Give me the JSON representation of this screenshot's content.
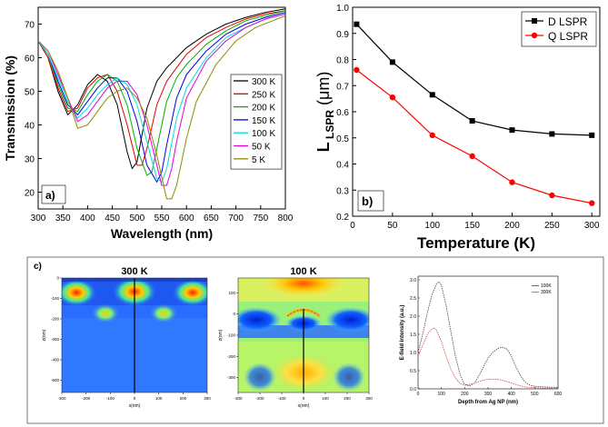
{
  "chart_data": [
    {
      "type": "line",
      "panel_label": "a)",
      "xlabel": "Wavelength (nm)",
      "ylabel": "Transmission (%)",
      "xlim": [
        300,
        800
      ],
      "ylim": [
        15,
        75
      ],
      "xticks": [
        300,
        350,
        400,
        450,
        500,
        550,
        600,
        650,
        700,
        750,
        800
      ],
      "yticks": [
        20,
        30,
        40,
        50,
        60,
        70
      ],
      "legend_position": "right",
      "series": [
        {
          "name": "300 K",
          "color": "#000000",
          "x": [
            300,
            320,
            340,
            360,
            380,
            400,
            420,
            440,
            460,
            480,
            490,
            500,
            510,
            520,
            540,
            560,
            580,
            600,
            640,
            680,
            720,
            760,
            800
          ],
          "y": [
            65,
            60,
            50,
            43,
            46,
            52,
            55,
            53,
            46,
            32,
            27,
            29,
            37,
            45,
            53,
            57,
            60,
            63,
            67,
            70,
            72,
            73.5,
            74.5
          ]
        },
        {
          "name": "250 K",
          "color": "#e00000",
          "x": [
            300,
            320,
            340,
            360,
            380,
            400,
            420,
            440,
            460,
            480,
            500,
            510,
            520,
            540,
            560,
            580,
            600,
            640,
            680,
            720,
            760,
            800
          ],
          "y": [
            65,
            60,
            51,
            44,
            45,
            51,
            54,
            55,
            50,
            40,
            28,
            28,
            33,
            46,
            53,
            57,
            61,
            66,
            69,
            71.5,
            73,
            74
          ]
        },
        {
          "name": "200 K",
          "color": "#00b000",
          "x": [
            300,
            320,
            340,
            360,
            380,
            400,
            420,
            440,
            460,
            480,
            500,
            520,
            530,
            540,
            560,
            580,
            600,
            640,
            680,
            720,
            760,
            800
          ],
          "y": [
            65,
            61,
            52,
            45,
            44,
            49,
            53,
            55,
            53,
            46,
            33,
            25,
            26,
            33,
            47,
            54,
            58,
            64,
            68,
            71,
            72.5,
            74
          ]
        },
        {
          "name": "150 K",
          "color": "#0000e0",
          "x": [
            300,
            320,
            340,
            360,
            380,
            400,
            420,
            440,
            460,
            480,
            500,
            520,
            540,
            550,
            560,
            580,
            600,
            640,
            680,
            720,
            760,
            800
          ],
          "y": [
            65,
            61,
            53,
            46,
            43,
            47,
            51,
            54,
            54,
            50,
            41,
            28,
            23,
            26,
            34,
            48,
            55,
            62,
            67,
            70,
            72,
            73.5
          ]
        },
        {
          "name": "100 K",
          "color": "#00e0e0",
          "x": [
            300,
            320,
            340,
            360,
            380,
            400,
            420,
            440,
            460,
            480,
            500,
            520,
            540,
            550,
            560,
            580,
            600,
            640,
            680,
            720,
            760,
            800
          ],
          "y": [
            65,
            61,
            54,
            47,
            42,
            45,
            49,
            52,
            54,
            52,
            46,
            35,
            24,
            23,
            27,
            42,
            51,
            60,
            66,
            69,
            71.5,
            73
          ]
        },
        {
          "name": "50 K",
          "color": "#e000e0",
          "x": [
            300,
            320,
            340,
            360,
            380,
            400,
            420,
            440,
            460,
            480,
            500,
            520,
            540,
            550,
            560,
            570,
            580,
            600,
            640,
            680,
            720,
            760,
            800
          ],
          "y": [
            65,
            62,
            55,
            48,
            41,
            43,
            47,
            51,
            53,
            53,
            49,
            40,
            28,
            22,
            22,
            27,
            35,
            48,
            59,
            65,
            69,
            71.5,
            73
          ]
        },
        {
          "name": "5 K",
          "color": "#8b8b00",
          "x": [
            300,
            320,
            340,
            360,
            380,
            400,
            420,
            440,
            460,
            480,
            500,
            520,
            540,
            560,
            570,
            580,
            590,
            600,
            620,
            660,
            700,
            740,
            800
          ],
          "y": [
            65,
            62,
            56,
            48,
            39,
            40,
            44,
            48,
            50,
            51,
            48,
            42,
            31,
            18,
            18,
            22,
            29,
            36,
            47,
            58,
            65,
            69,
            72.5
          ]
        }
      ]
    },
    {
      "type": "line",
      "panel_label": "b)",
      "xlabel": "Temperature (K)",
      "ylabel_main": "L",
      "ylabel_sub": "LSPR",
      "ylabel_unit": "(μm)",
      "xlim": [
        0,
        310
      ],
      "ylim": [
        0.2,
        1.0
      ],
      "xticks": [
        0,
        50,
        100,
        150,
        200,
        250,
        300
      ],
      "yticks": [
        0.2,
        0.3,
        0.4,
        0.5,
        0.6,
        0.7,
        0.8,
        0.9,
        1.0
      ],
      "legend_position": "top-right",
      "series": [
        {
          "name": "D LSPR",
          "color": "#000000",
          "marker": "square",
          "x": [
            5,
            50,
            100,
            150,
            200,
            250,
            300
          ],
          "y": [
            0.935,
            0.79,
            0.665,
            0.565,
            0.53,
            0.515,
            0.51
          ]
        },
        {
          "name": "Q LSPR",
          "color": "#ff0000",
          "marker": "circle",
          "x": [
            5,
            50,
            100,
            150,
            200,
            250,
            300
          ],
          "y": [
            0.76,
            0.655,
            0.51,
            0.43,
            0.33,
            0.28,
            0.25
          ]
        }
      ]
    },
    {
      "type": "heatmap",
      "panel_label": "c)",
      "title": "300 K",
      "xlabel": "x(nm)",
      "ylabel": "z(nm)",
      "xticks": [
        -300,
        -200,
        -100,
        0,
        100,
        200,
        300
      ],
      "yticks": [
        0,
        -100,
        -200,
        -300,
        -400,
        -500
      ],
      "xlim": [
        -300,
        300
      ],
      "ylim": [
        -560,
        0
      ]
    },
    {
      "type": "heatmap",
      "title": "100 K",
      "xlabel": "x(nm)",
      "ylabel": "z(nm)",
      "xticks": [
        -300,
        -200,
        -100,
        0,
        100,
        200,
        300
      ],
      "yticks": [
        100,
        0,
        -100,
        -200,
        -300
      ],
      "xlim": [
        -300,
        300
      ],
      "ylim": [
        -370,
        170
      ]
    },
    {
      "type": "line",
      "xlabel": "Depth from Ag NP (nm)",
      "ylabel": "E-field intensity (a.u.)",
      "xlim": [
        0,
        600
      ],
      "ylim": [
        0,
        3.1
      ],
      "xticks": [
        0,
        100,
        200,
        300,
        400,
        500,
        600
      ],
      "yticks": [
        0.0,
        0.5,
        1.0,
        1.5,
        2.0,
        2.5,
        3.0
      ],
      "legend_position": "top-right",
      "series": [
        {
          "name": "100K",
          "color": "#444444",
          "x": [
            0,
            20,
            40,
            60,
            80,
            90,
            100,
            120,
            140,
            160,
            180,
            200,
            220,
            240,
            260,
            280,
            300,
            320,
            340,
            360,
            380,
            400,
            420,
            440,
            460,
            480,
            500,
            550,
            600
          ],
          "y": [
            1.0,
            1.5,
            2.1,
            2.6,
            2.9,
            2.95,
            2.85,
            2.3,
            1.6,
            0.9,
            0.4,
            0.12,
            0.08,
            0.15,
            0.35,
            0.6,
            0.85,
            1.0,
            1.1,
            1.15,
            1.1,
            0.9,
            0.6,
            0.35,
            0.18,
            0.1,
            0.07,
            0.05,
            0.04
          ]
        },
        {
          "name": "300K",
          "color": "#e04040",
          "x": [
            0,
            20,
            40,
            60,
            70,
            80,
            100,
            120,
            140,
            160,
            180,
            200,
            220,
            240,
            260,
            280,
            300,
            320,
            340,
            360,
            380,
            400,
            420,
            440,
            460,
            500,
            550,
            600
          ],
          "y": [
            0.9,
            1.2,
            1.5,
            1.65,
            1.68,
            1.6,
            1.3,
            0.9,
            0.55,
            0.3,
            0.15,
            0.1,
            0.12,
            0.15,
            0.2,
            0.24,
            0.26,
            0.27,
            0.26,
            0.24,
            0.2,
            0.16,
            0.12,
            0.08,
            0.05,
            0.03,
            0.02,
            0.02
          ]
        }
      ]
    }
  ]
}
